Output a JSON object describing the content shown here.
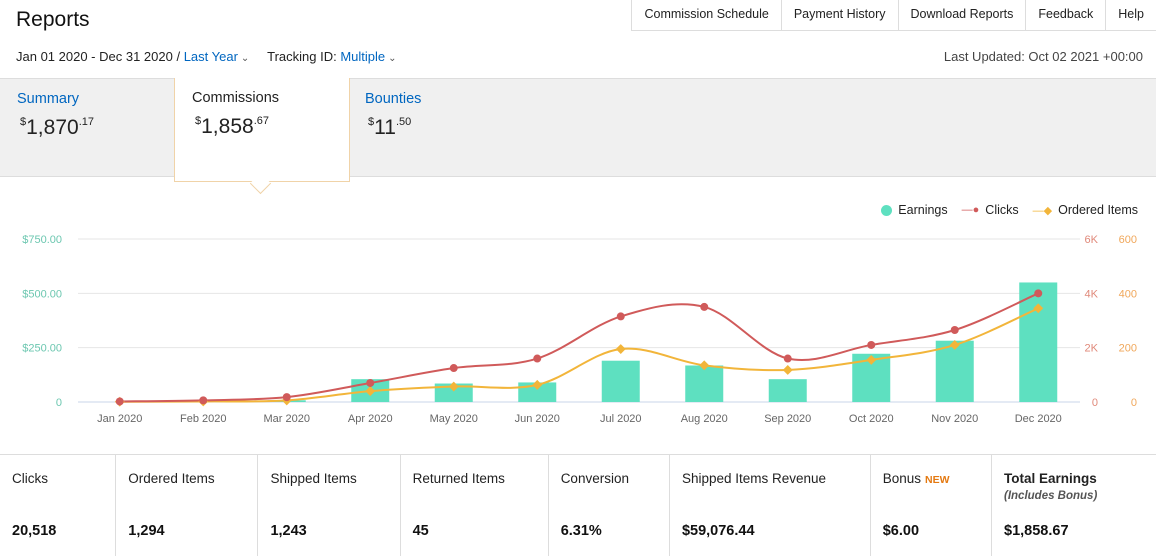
{
  "header": {
    "title": "Reports",
    "nav": [
      "Commission Schedule",
      "Payment History",
      "Download Reports",
      "Feedback",
      "Help"
    ],
    "date_range": "Jan 01 2020 - Dec 31 2020 /",
    "period_link": "Last Year",
    "tracking_label": "Tracking ID:",
    "tracking_value": "Multiple",
    "last_updated": "Last Updated: Oct 02 2021 +00:00"
  },
  "tabs": [
    {
      "label": "Summary",
      "currency": "$",
      "whole": "1,870",
      "cents": ".17"
    },
    {
      "label": "Commissions",
      "currency": "$",
      "whole": "1,858",
      "cents": ".67"
    },
    {
      "label": "Bounties",
      "currency": "$",
      "whole": "11",
      "cents": ".50"
    }
  ],
  "colors": {
    "earnings": "#5ee0c0",
    "clicks": "#d05a5a",
    "ordered": "#f2b53a",
    "link": "#0066c0"
  },
  "chart_data": {
    "type": "bar",
    "categories": [
      "Jan 2020",
      "Feb 2020",
      "Mar 2020",
      "Apr 2020",
      "May 2020",
      "Jun 2020",
      "Jul 2020",
      "Aug 2020",
      "Sep 2020",
      "Oct 2020",
      "Nov 2020",
      "Dec 2020"
    ],
    "series": [
      {
        "name": "Earnings",
        "type": "bar",
        "axis": "left",
        "values": [
          0,
          0,
          8,
          105,
          85,
          90,
          190,
          168,
          105,
          222,
          282,
          550
        ]
      },
      {
        "name": "Clicks",
        "type": "line",
        "axis": "right-1",
        "values": [
          20,
          60,
          180,
          700,
          1250,
          1600,
          3150,
          3500,
          1600,
          2100,
          2650,
          4000
        ]
      },
      {
        "name": "Ordered Items",
        "type": "line",
        "axis": "right-2",
        "values": [
          1,
          2,
          6,
          40,
          57,
          63,
          195,
          135,
          118,
          155,
          210,
          345
        ]
      }
    ],
    "left_axis": {
      "ticks": [
        "0",
        "$250.00",
        "$500.00",
        "$750.00"
      ],
      "range": [
        0,
        750
      ]
    },
    "right_axis_1": {
      "ticks": [
        "0",
        "2K",
        "4K",
        "6K"
      ],
      "range": [
        0,
        6000
      ]
    },
    "right_axis_2": {
      "ticks": [
        "0",
        "200",
        "400",
        "600"
      ],
      "range": [
        0,
        600
      ]
    },
    "legend_position": "top-right",
    "grid": true
  },
  "stats": [
    {
      "label": "Clicks",
      "value": "20,518"
    },
    {
      "label": "Ordered Items",
      "value": "1,294"
    },
    {
      "label": "Shipped Items",
      "value": "1,243"
    },
    {
      "label": "Returned Items",
      "value": "45"
    },
    {
      "label": "Conversion",
      "value": "6.31%"
    },
    {
      "label": "Shipped Items Revenue",
      "value": "$59,076.44"
    },
    {
      "label": "Bonus",
      "badge": "NEW",
      "value": "$6.00"
    },
    {
      "label": "Total Earnings",
      "sub": "(Includes Bonus)",
      "value": "$1,858.67"
    }
  ]
}
